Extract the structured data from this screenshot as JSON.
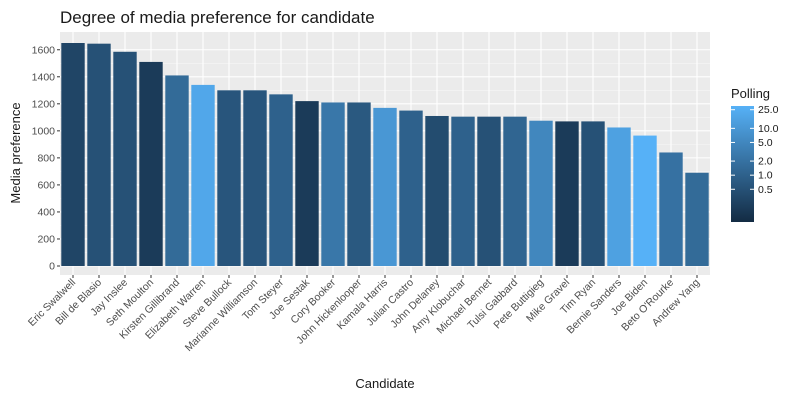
{
  "chart_data": {
    "type": "bar",
    "title": "Degree of media preference for candidate",
    "xlabel": "Candidate",
    "ylabel": "Media preference",
    "ylim": [
      0,
      1700
    ],
    "yticks": [
      0,
      200,
      400,
      600,
      800,
      1000,
      1200,
      1400,
      1600
    ],
    "grid": true,
    "legend": {
      "title": "Polling",
      "placement": "right",
      "scale": "log",
      "labels": [
        "25.0",
        "10.0",
        "5.0",
        "2.0",
        "1.0",
        "0.5"
      ],
      "range": [
        0.1,
        30
      ],
      "color_low": "#132b43",
      "color_high": "#56b1f7"
    },
    "categories": [
      "Eric Swalwell",
      "Bill de Blasio",
      "Jay Inslee",
      "Seth Moulton",
      "Kirsten Gillibrand",
      "Elizabeth Warren",
      "Steve Bullock",
      "Marianne Williamson",
      "Tom Steyer",
      "Joe Sestak",
      "Cory Booker",
      "John Hickenlooper",
      "Kamala Harris",
      "Julian Castro",
      "John Delaney",
      "Amy Klobuchar",
      "Michael Bennet",
      "Tulsi Gabbard",
      "Pete Buttigieg",
      "Mike Gravel",
      "Tim Ryan",
      "Bernie Sanders",
      "Joe Biden",
      "Beto O'Rourke",
      "Andrew Yang"
    ],
    "values": [
      1650,
      1645,
      1585,
      1510,
      1410,
      1340,
      1300,
      1300,
      1270,
      1220,
      1210,
      1210,
      1170,
      1150,
      1110,
      1105,
      1105,
      1105,
      1075,
      1070,
      1070,
      1025,
      965,
      840,
      690
    ],
    "polling": [
      0.3,
      0.5,
      0.5,
      0.2,
      1.5,
      20.0,
      0.6,
      0.6,
      1.0,
      0.2,
      2.5,
      0.7,
      10.0,
      1.0,
      0.4,
      1.0,
      0.5,
      1.2,
      5.0,
      0.2,
      0.5,
      15.0,
      30.0,
      2.0,
      1.5
    ]
  }
}
